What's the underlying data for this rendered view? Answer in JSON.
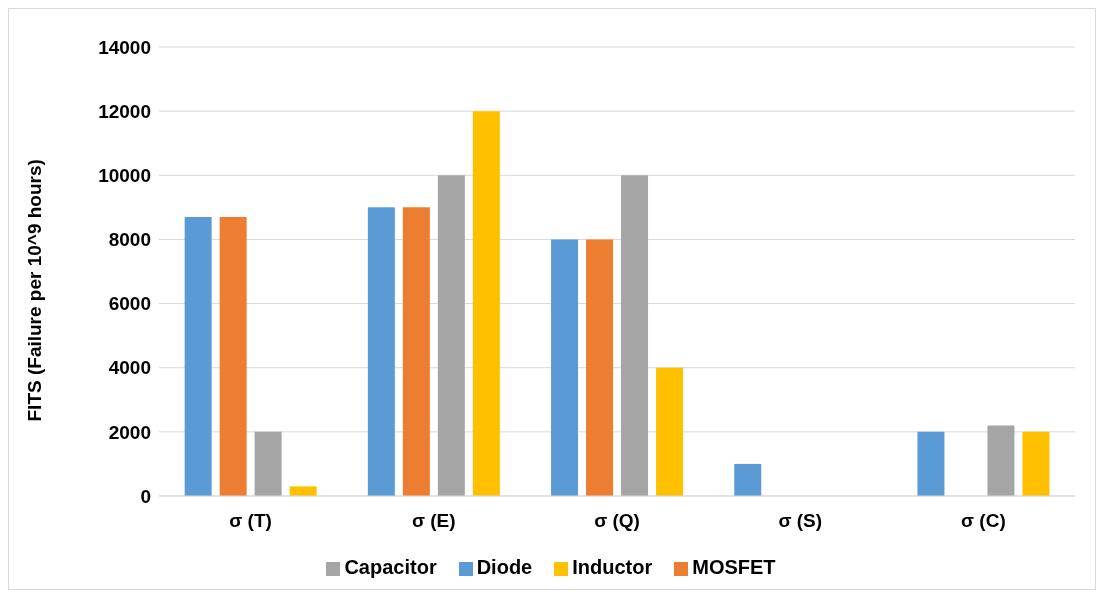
{
  "chart_data": {
    "type": "bar",
    "ylabel": "FITS (Failure per 10^9 hours)",
    "categories": [
      "σ (T)",
      "σ (E)",
      "σ (Q)",
      "σ (S)",
      "σ (C)"
    ],
    "series": [
      {
        "name": "Diode",
        "color": "#5b9bd5",
        "values": [
          8700,
          9000,
          8000,
          1000,
          2000
        ]
      },
      {
        "name": "MOSFET",
        "color": "#ed7d31",
        "values": [
          8700,
          9000,
          8000,
          null,
          null
        ]
      },
      {
        "name": "Capacitor",
        "color": "#a5a5a5",
        "values": [
          2000,
          10000,
          10000,
          null,
          2200
        ]
      },
      {
        "name": "Inductor",
        "color": "#ffc000",
        "values": [
          300,
          12000,
          4000,
          null,
          2000
        ]
      }
    ],
    "ylim": [
      0,
      14000
    ],
    "yticks": [
      0,
      2000,
      4000,
      6000,
      8000,
      10000,
      12000,
      14000
    ],
    "grid": "y",
    "legend": "bottom"
  }
}
